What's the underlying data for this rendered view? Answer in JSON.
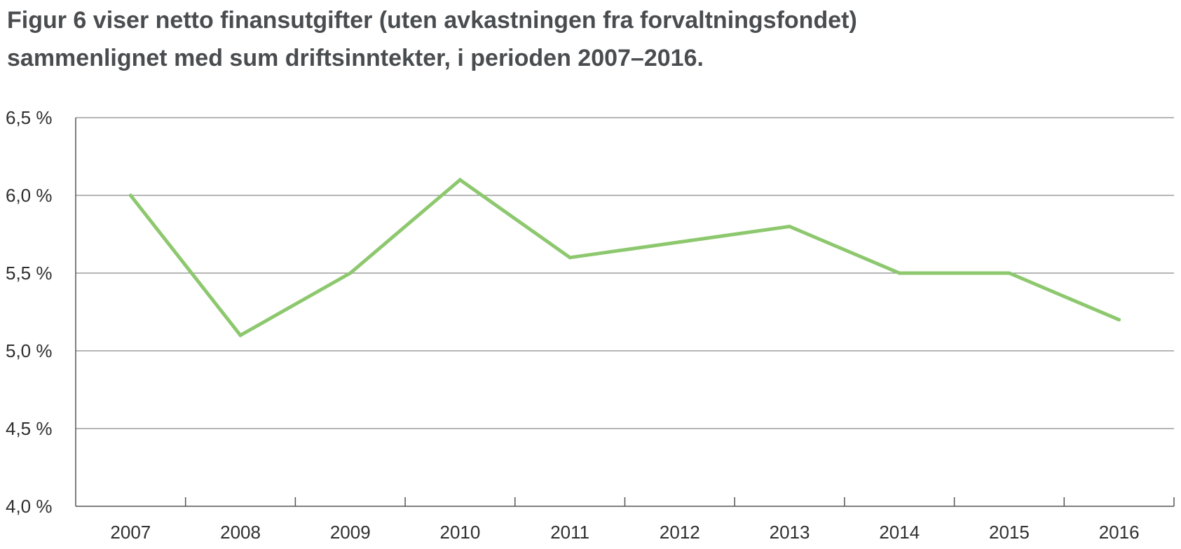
{
  "title_lines": [
    "Figur 6 viser netto finansutgifter (uten avkastningen fra forvaltningsfondet)",
    "sammenlignet med sum driftsinntekter, i perioden 2007–2016."
  ],
  "colors": {
    "series_line": "#8dc86e",
    "gridline": "#8a8a8a",
    "axis": "#555555",
    "text": "#2f2f2f",
    "title": "#4a4d50"
  },
  "chart_data": {
    "type": "line",
    "title": "Figur 6 viser netto finansutgifter (uten avkastningen fra forvaltningsfondet) sammenlignet med sum driftsinntekter, i perioden 2007–2016.",
    "xlabel": "",
    "ylabel": "",
    "categories": [
      "2007",
      "2008",
      "2009",
      "2010",
      "2011",
      "2012",
      "2013",
      "2014",
      "2015",
      "2016"
    ],
    "series": [
      {
        "values": [
          6.0,
          5.1,
          5.5,
          6.1,
          5.6,
          5.7,
          5.8,
          5.5,
          5.5,
          5.2
        ]
      }
    ],
    "ylim": [
      4.0,
      6.5
    ],
    "y_ticks": [
      4.0,
      4.5,
      5.0,
      5.5,
      6.0,
      6.5
    ],
    "y_tick_labels": [
      "4,0 %",
      "4,5 %",
      "5,0 %",
      "5,5 %",
      "6,0 %",
      "6,5 %"
    ],
    "grid": true,
    "legend": "none"
  }
}
